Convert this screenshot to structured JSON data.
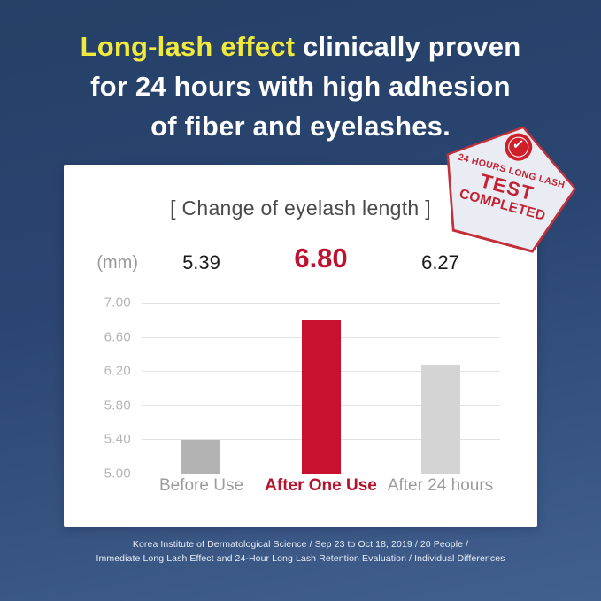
{
  "header": {
    "highlight": "Long-lash effect",
    "line1_rest": " clinically proven",
    "line2": "for 24 hours with high adhesion",
    "line3": "of fiber and eyelashes.",
    "highlight_color": "#f2e93f"
  },
  "stamp": {
    "line1": "24 HOURS LONG LASH",
    "line2": "TEST",
    "line3": "COMPLETED",
    "check_glyph": "✓",
    "red": "#c22233",
    "bg": "#e9ecf2"
  },
  "chart_data": {
    "type": "bar",
    "title": "[ Change of eyelash length ]",
    "unit": "(mm)",
    "categories": [
      "Before Use",
      "After One Use",
      "After 24 hours"
    ],
    "values": [
      5.39,
      6.8,
      6.27
    ],
    "value_labels": [
      "5.39",
      "6.80",
      "6.27"
    ],
    "bar_colors": [
      "#b3b3b3",
      "#c9112f",
      "#d4d4d4"
    ],
    "value_colors": [
      "#191919",
      "#bf1130",
      "#191919"
    ],
    "label_colors": [
      "#9c9c9c",
      "#b5122c",
      "#9c9c9c"
    ],
    "highlight_index": 1,
    "ylim": [
      5.0,
      7.0
    ],
    "yticks": [
      "7.00",
      "6.60",
      "6.20",
      "5.80",
      "5.40",
      "5.00"
    ],
    "grid": true,
    "legend": false,
    "accent_red": "#c9112f"
  },
  "footer": {
    "line1": "Korea Institute of Dermatological Science / Sep 23 to Oct 18, 2019 / 20 People /",
    "line2": "Immediate Long Lash Effect and 24-Hour Long Lash Retention Evaluation / Individual Differences"
  }
}
